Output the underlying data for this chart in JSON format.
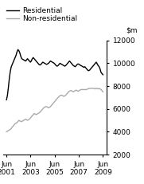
{
  "ylim": [
    2000,
    12000
  ],
  "yticks": [
    2000,
    4000,
    6000,
    8000,
    10000,
    12000
  ],
  "residential_color": "#000000",
  "nonresidential_color": "#aaaaaa",
  "legend_labels": [
    "Residential",
    "Non-residential"
  ],
  "x_tick_labels": [
    "Jun\n2001",
    "Jun\n2003",
    "Jun\n2005",
    "Jun\n2007",
    "Jun\n2009"
  ],
  "background_color": "#ffffff",
  "font_size": 6.5,
  "line_width": 1.0,
  "residential": [
    6800,
    7200,
    7900,
    8700,
    9300,
    9700,
    9900,
    10100,
    10300,
    10500,
    10700,
    11000,
    11200,
    11100,
    10900,
    10600,
    10400,
    10350,
    10300,
    10250,
    10200,
    10300,
    10400,
    10300,
    10200,
    10100,
    10200,
    10400,
    10500,
    10400,
    10300,
    10200,
    10100,
    10000,
    9900,
    9850,
    9900,
    10000,
    10100,
    10050,
    10000,
    9950,
    9900,
    9950,
    10000,
    10100,
    10200,
    10150,
    10100,
    10050,
    10000,
    9900,
    9800,
    9750,
    9800,
    9900,
    10000,
    9950,
    9900,
    9850,
    9800,
    9750,
    9800,
    9900,
    10000,
    10100,
    10200,
    10100,
    10000,
    9900,
    9800,
    9750,
    9700,
    9800,
    9900,
    9950,
    9900,
    9850,
    9800,
    9750,
    9700,
    9650,
    9700,
    9600,
    9500,
    9400,
    9350,
    9400,
    9500,
    9600,
    9700,
    9800,
    9900,
    10000,
    10100,
    9950,
    9800,
    9700,
    9500,
    9200,
    9100,
    9000
  ],
  "nonresidential": [
    4000,
    4050,
    4100,
    4150,
    4200,
    4300,
    4400,
    4500,
    4600,
    4700,
    4750,
    4800,
    4900,
    5000,
    4950,
    4900,
    4900,
    4950,
    5000,
    5050,
    5100,
    5050,
    5000,
    5050,
    5100,
    5200,
    5300,
    5400,
    5500,
    5600,
    5550,
    5500,
    5550,
    5600,
    5650,
    5700,
    5800,
    5900,
    6000,
    6100,
    6150,
    6200,
    6200,
    6150,
    6100,
    6150,
    6200,
    6300,
    6400,
    6500,
    6600,
    6700,
    6800,
    6900,
    7000,
    7100,
    7150,
    7200,
    7200,
    7150,
    7100,
    7150,
    7200,
    7300,
    7400,
    7500,
    7550,
    7600,
    7600,
    7550,
    7500,
    7550,
    7600,
    7650,
    7600,
    7550,
    7600,
    7650,
    7700,
    7700,
    7700,
    7700,
    7700,
    7700,
    7700,
    7750,
    7800,
    7800,
    7800,
    7800,
    7800,
    7800,
    7800,
    7750,
    7800,
    7800,
    7750,
    7800,
    7750,
    7700,
    7600,
    7500
  ]
}
